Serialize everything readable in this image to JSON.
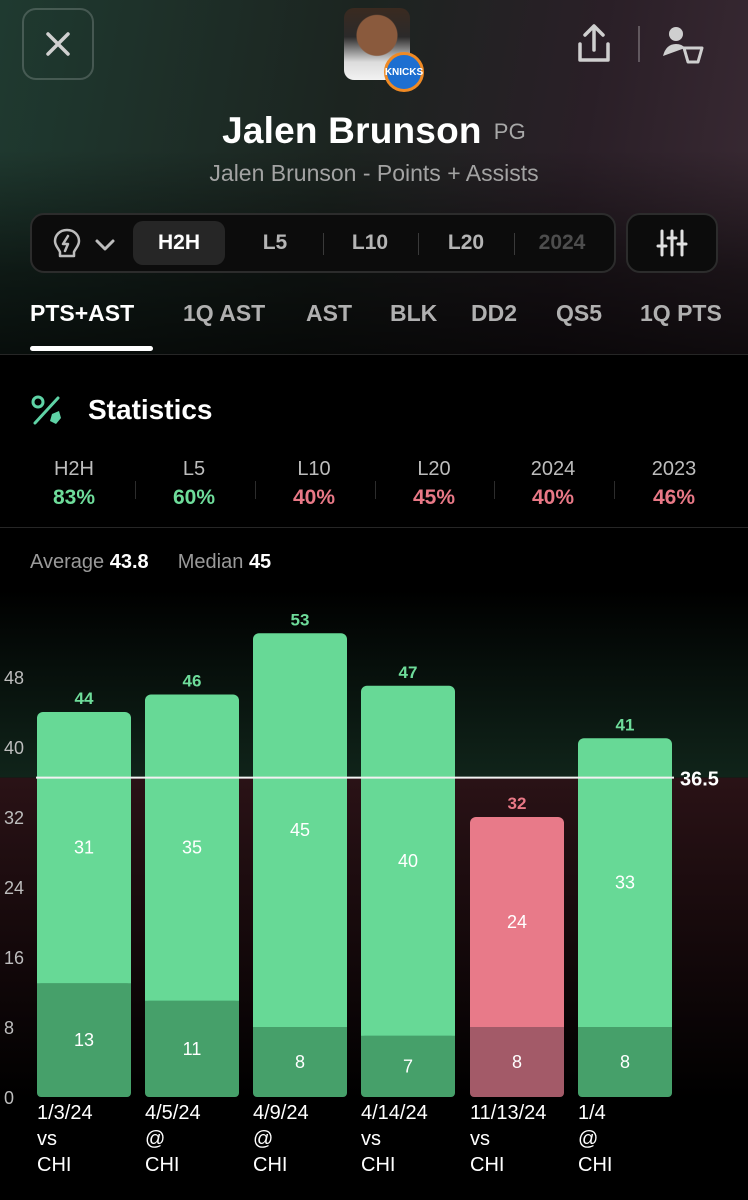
{
  "header": {
    "close_icon": "close-icon",
    "share_icon": "share-icon",
    "follow_icon": "player-follow-icon",
    "team_logo_text": "KNICKS",
    "player_name": "Jalen Brunson",
    "position": "PG",
    "subtitle": "Jalen Brunson - Points + Assists"
  },
  "filters": {
    "insight_icon": "lightbulb-bolt-icon",
    "tabs": [
      {
        "label": "H2H",
        "active": true
      },
      {
        "label": "L5",
        "active": false
      },
      {
        "label": "L10",
        "active": false
      },
      {
        "label": "L20",
        "active": false
      },
      {
        "label": "2024",
        "active": false
      }
    ],
    "settings_icon": "sliders-icon"
  },
  "market_tabs": [
    {
      "label": "PTS+AST",
      "active": true
    },
    {
      "label": "1Q AST",
      "active": false
    },
    {
      "label": "AST",
      "active": false
    },
    {
      "label": "BLK",
      "active": false
    },
    {
      "label": "DD2",
      "active": false
    },
    {
      "label": "QS5",
      "active": false
    },
    {
      "label": "1Q PTS",
      "active": false
    }
  ],
  "statistics": {
    "icon": "percent-icon",
    "title": "Statistics",
    "items": [
      {
        "label": "H2H",
        "value": "83%",
        "status": "good"
      },
      {
        "label": "L5",
        "value": "60%",
        "status": "good"
      },
      {
        "label": "L10",
        "value": "40%",
        "status": "bad"
      },
      {
        "label": "L20",
        "value": "45%",
        "status": "bad"
      },
      {
        "label": "2024",
        "value": "40%",
        "status": "bad"
      },
      {
        "label": "2023",
        "value": "46%",
        "status": "bad"
      }
    ]
  },
  "summary": {
    "average_label": "Average",
    "average_value": "43.8",
    "median_label": "Median",
    "median_value": "45"
  },
  "colors": {
    "good": "#6edc9a",
    "bad": "#e87886",
    "bar_good_top": "#67d996",
    "bar_good_bottom": "#46a06a",
    "bar_bad_top": "#e87a89",
    "bar_bad_bottom": "#a35a68"
  },
  "chart_data": {
    "type": "bar",
    "stacked": true,
    "ylim": [
      0,
      56
    ],
    "yticks": [
      0,
      8,
      16,
      24,
      32,
      40,
      48
    ],
    "line_value": 36.5,
    "line_label": "36.5",
    "categories": [
      {
        "date": "1/3/24",
        "venue": "vs",
        "opponent": "CHI"
      },
      {
        "date": "4/5/24",
        "venue": "@",
        "opponent": "CHI"
      },
      {
        "date": "4/9/24",
        "venue": "@",
        "opponent": "CHI"
      },
      {
        "date": "4/14/24",
        "venue": "vs",
        "opponent": "CHI"
      },
      {
        "date": "11/13/24",
        "venue": "vs",
        "opponent": "CHI"
      },
      {
        "date": "1/4",
        "venue": "@",
        "opponent": "CHI"
      }
    ],
    "series": [
      {
        "name": "",
        "values": [
          13,
          11,
          8,
          7,
          8,
          8
        ]
      },
      {
        "name": "",
        "values": [
          31,
          35,
          45,
          40,
          24,
          33
        ]
      }
    ],
    "totals": [
      44,
      46,
      53,
      47,
      32,
      41
    ],
    "over_line": [
      true,
      true,
      true,
      true,
      false,
      true
    ]
  }
}
